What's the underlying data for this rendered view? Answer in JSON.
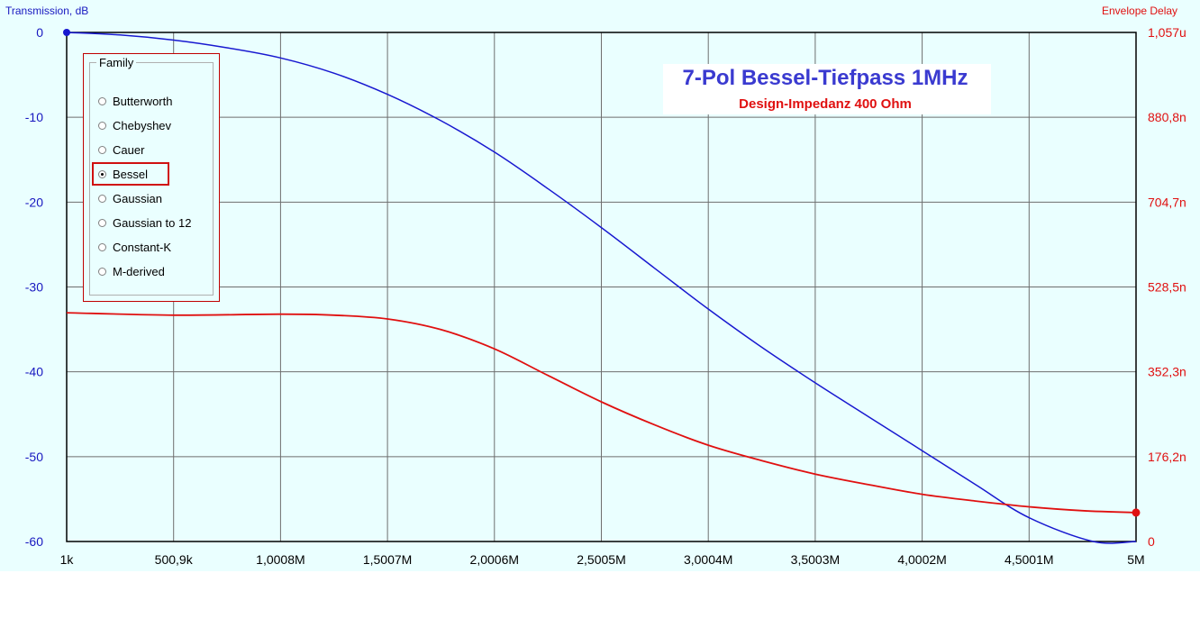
{
  "axis_titles": {
    "left": "Transmission, dB",
    "right": "Envelope Delay"
  },
  "family": {
    "legend": "Family",
    "options": [
      "Butterworth",
      "Chebyshev",
      "Cauer",
      "Bessel",
      "Gaussian",
      "Gaussian to 12",
      "Constant-K",
      "M-derived"
    ],
    "selected": "Bessel"
  },
  "annotation": {
    "title": "7-Pol Bessel-Tiefpass 1MHz",
    "subtitle": "Design-Impedanz 400 Ohm"
  },
  "colors": {
    "background": "#eaffff",
    "grid": "#6e6e6e",
    "transmission": "#1818d0",
    "delay": "#e01010",
    "left_axis_text": "#1818c0",
    "right_axis_text": "#e01010"
  },
  "chart_data": {
    "type": "line",
    "x_tick_labels": [
      "1k",
      "500,9k",
      "1,0008M",
      "1,5007M",
      "2,0006M",
      "2,5005M",
      "3,0004M",
      "3,5003M",
      "4,0002M",
      "4,5001M",
      "5M"
    ],
    "y_left_tick_labels": [
      "0",
      "-10",
      "-20",
      "-30",
      "-40",
      "-50",
      "-60"
    ],
    "y_right_tick_labels": [
      "1,057u",
      "880,8n",
      "704,7n",
      "528,5n",
      "352,3n",
      "176,2n",
      "0"
    ],
    "xlim": [
      1000,
      5000000
    ],
    "ylim_left": [
      -60,
      0
    ],
    "ylim_right_ns": [
      0,
      1057
    ],
    "grid": true,
    "series": [
      {
        "name": "Transmission, dB",
        "axis": "left",
        "x_hz": [
          1000,
          250000,
          500900,
          750000,
          1000800,
          1250000,
          1500700,
          1750000,
          2000600,
          2250000,
          2500500,
          2750000,
          3000400,
          3250000,
          3500300,
          3750000,
          4000200,
          4250000,
          4500100,
          4800000,
          5000000
        ],
        "y_db": [
          0,
          -0.3,
          -0.9,
          -1.8,
          -3.0,
          -4.8,
          -7.3,
          -10.4,
          -14.1,
          -18.4,
          -23.0,
          -27.8,
          -32.6,
          -37.1,
          -41.3,
          -45.3,
          -49.3,
          -53.3,
          -57.2,
          -60,
          -60
        ]
      },
      {
        "name": "Envelope Delay",
        "axis": "right",
        "x_hz": [
          1000,
          500900,
          1000800,
          1250000,
          1500700,
          1750000,
          2000600,
          2250000,
          2500500,
          2750000,
          3000400,
          3250000,
          3500300,
          3750000,
          4000200,
          4250000,
          4500100,
          4750000,
          5000000
        ],
        "y_ns": [
          475,
          470,
          472,
          470,
          462,
          440,
          400,
          345,
          290,
          242,
          200,
          168,
          140,
          118,
          98,
          84,
          72,
          64,
          60
        ]
      }
    ]
  }
}
